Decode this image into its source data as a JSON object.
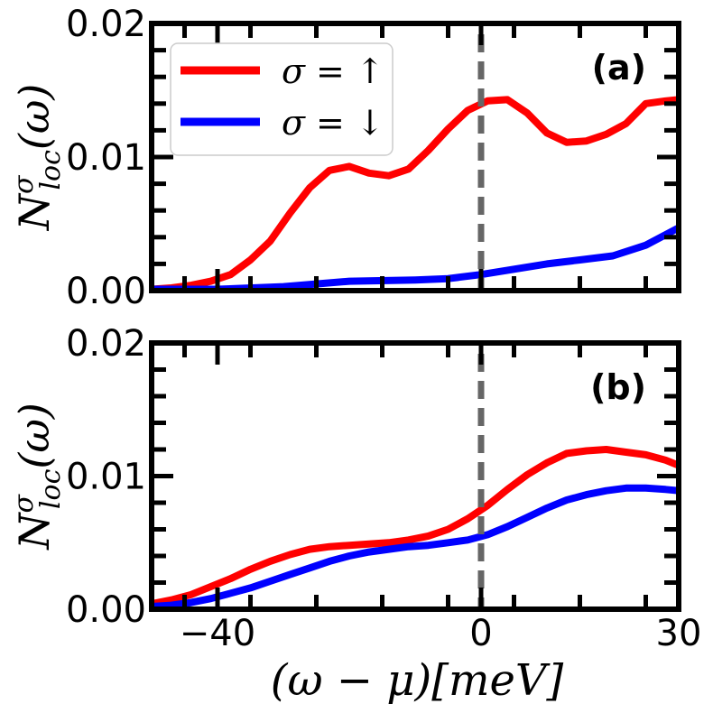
{
  "chart_data": {
    "type": "line",
    "xlabel": "(ω − μ)[meV]",
    "xlim": [
      -50,
      30
    ],
    "xticks": [
      -40,
      0,
      30
    ],
    "xtick_labels": [
      "−40",
      "0",
      "30"
    ],
    "colors": {
      "up": "#ff0000",
      "down": "#0000ff",
      "fermi": "#666666"
    },
    "legend": [
      "σ = ↑",
      "σ = ↓"
    ],
    "legend_position": "upper-left",
    "fermi_line_x": 0,
    "panels": [
      {
        "label": "(a)",
        "ylabel_main": "N",
        "ylabel_sup": "σ",
        "ylabel_sub": "loc",
        "ylabel_tail": "(ω)",
        "ylim": [
          0,
          0.02
        ],
        "yticks": [
          0,
          0.01,
          0.02
        ],
        "ytick_labels": [
          "0.00",
          "0.01",
          "0.02"
        ],
        "series": [
          {
            "name": "σ = ↑",
            "key": "up",
            "x": [
              -50,
              -47,
              -44,
              -41,
              -38,
              -35,
              -32,
              -29,
              -26,
              -23,
              -20,
              -17,
              -14,
              -11,
              -8,
              -5,
              -2,
              1,
              4,
              7,
              10,
              13,
              16,
              19,
              22,
              25,
              28,
              30
            ],
            "values": [
              0.0001,
              0.0002,
              0.0004,
              0.0007,
              0.0012,
              0.0023,
              0.0037,
              0.0058,
              0.0077,
              0.009,
              0.0093,
              0.0088,
              0.0086,
              0.0091,
              0.0105,
              0.0121,
              0.0135,
              0.0142,
              0.0143,
              0.0133,
              0.0118,
              0.0111,
              0.0112,
              0.0117,
              0.0125,
              0.014,
              0.0142,
              0.0143
            ]
          },
          {
            "name": "σ = ↓",
            "key": "down",
            "x": [
              -50,
              -40,
              -30,
              -20,
              -10,
              -5,
              0,
              5,
              10,
              15,
              20,
              25,
              30
            ],
            "values": [
              0.0001,
              0.0001,
              0.0003,
              0.0007,
              0.0008,
              0.0009,
              0.0012,
              0.0016,
              0.002,
              0.0023,
              0.0026,
              0.0034,
              0.0047
            ]
          }
        ]
      },
      {
        "label": "(b)",
        "ylabel_main": "N",
        "ylabel_sup": "σ",
        "ylabel_sub": "loc",
        "ylabel_tail": "(ω)",
        "ylim": [
          0,
          0.02
        ],
        "yticks": [
          0,
          0.01,
          0.02
        ],
        "ytick_labels": [
          "0.00",
          "0.01",
          "0.02"
        ],
        "series": [
          {
            "name": "σ = ↑",
            "key": "up",
            "x": [
              -50,
              -47,
              -44,
              -41,
              -38,
              -35,
              -32,
              -29,
              -26,
              -23,
              -20,
              -17,
              -14,
              -11,
              -8,
              -5,
              -2,
              1,
              4,
              7,
              10,
              13,
              16,
              19,
              22,
              25,
              28,
              30
            ],
            "values": [
              0.0004,
              0.0007,
              0.0011,
              0.0017,
              0.0023,
              0.003,
              0.0036,
              0.0041,
              0.0045,
              0.0047,
              0.0048,
              0.0049,
              0.005,
              0.0052,
              0.0055,
              0.006,
              0.0068,
              0.0078,
              0.009,
              0.0101,
              0.011,
              0.0117,
              0.0119,
              0.012,
              0.0118,
              0.0116,
              0.0112,
              0.0108
            ]
          },
          {
            "name": "σ = ↓",
            "key": "down",
            "x": [
              -50,
              -47,
              -44,
              -41,
              -38,
              -35,
              -32,
              -29,
              -26,
              -23,
              -20,
              -17,
              -14,
              -11,
              -8,
              -5,
              -2,
              1,
              4,
              7,
              10,
              13,
              16,
              19,
              22,
              25,
              28,
              30
            ],
            "values": [
              0.0002,
              0.0003,
              0.0005,
              0.0008,
              0.0012,
              0.0016,
              0.0021,
              0.0026,
              0.0031,
              0.0036,
              0.004,
              0.0043,
              0.0045,
              0.0047,
              0.0048,
              0.005,
              0.0052,
              0.0056,
              0.0062,
              0.0069,
              0.0076,
              0.0082,
              0.0086,
              0.0089,
              0.0091,
              0.0091,
              0.009,
              0.0089
            ]
          }
        ]
      }
    ]
  }
}
